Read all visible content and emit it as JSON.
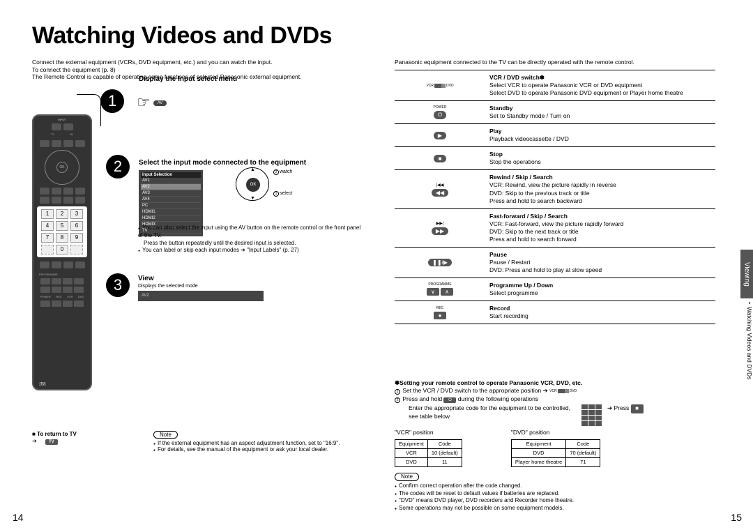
{
  "title": "Watching Videos and DVDs",
  "intro": {
    "l1": "Connect the external equipment (VCRs, DVD equipment, etc.) and you can watch the input.",
    "l2": "To connect the equipment (p. 8)",
    "l3": "The Remote Control is capable of operating some functions of selected Panasonic external equipment."
  },
  "steps": {
    "s1": {
      "title": "Display the Input select menu",
      "av": "AV"
    },
    "s2": {
      "title": "Select the input mode connected to the equipment",
      "inputSelHeader": "Input Selection",
      "inputs": [
        "AV1",
        "AV2",
        "AV3",
        "AV4",
        "PC",
        "HDMI1",
        "HDMI2",
        "HDMI3",
        "TV"
      ],
      "ok": "OK",
      "watch": "watch",
      "select": "select",
      "body1": "You can also select the input using the AV button on the remote control or the front panel of the TV.",
      "body2": "Press the button repeatedly until the desired input is selected.",
      "body3": "You can label or skip each input modes ➔ \"Input Labels\" (p. 27)"
    },
    "s3": {
      "title": "View",
      "sub": "Displays the selected mode",
      "mode": "AV2"
    }
  },
  "returnTv": {
    "label": "To return to TV",
    "tv": "TV"
  },
  "leftNote": {
    "label": "Note",
    "l1": "If the external equipment has an aspect adjustment function, set to \"16:9\".",
    "l2": "For details, see the manual of the equipment or ask your local dealer."
  },
  "rightIntro": "Panasonic equipment connected to the TV can be directly operated with the remote control.",
  "functions": [
    {
      "icon": "switch",
      "lbl1": "VCR",
      "lbl2": "DVD",
      "title": "VCR / DVD switch✽",
      "d1": "Select VCR to operate Panasonic VCR or DVD equipment",
      "d2": "Select DVD to operate Panasonic DVD equipment or Player home theatre"
    },
    {
      "icon": "power",
      "label": "POWER",
      "glyph": "⏻",
      "title": "Standby",
      "d1": "Set to Standby mode / Turn on"
    },
    {
      "icon": "play",
      "glyph": "▶",
      "title": "Play",
      "d1": "Playback videocassette / DVD"
    },
    {
      "icon": "stop",
      "glyph": "■",
      "title": "Stop",
      "d1": "Stop the operations"
    },
    {
      "icon": "rew",
      "glyph1": "|◀◀",
      "glyph2": "◀◀",
      "title": "Rewind / Skip / Search",
      "d1": "VCR: Rewind, view the picture rapidly in reverse",
      "d2": "DVD: Skip to the previous track or title",
      "d3": "        Press and hold to search backward"
    },
    {
      "icon": "ff",
      "glyph1": "▶▶|",
      "glyph2": "▶▶",
      "title": "Fast-forward / Skip / Search",
      "d1": "VCR: Fast-forward, view the picture rapidly forward",
      "d2": "DVD: Skip to the next track or title",
      "d3": "        Press and hold to search forward"
    },
    {
      "icon": "pause",
      "glyph": "❚❚/▶",
      "title": "Pause",
      "d1": "Pause / Restart",
      "d2": "DVD: Press and hold to play at slow speed"
    },
    {
      "icon": "prog",
      "label": "PROGRAMME",
      "glyph1": "∨",
      "glyph2": "∧",
      "title": "Programme Up / Down",
      "d1": "Select programme"
    },
    {
      "icon": "rec",
      "label": "REC",
      "glyph": "●",
      "title": "Record",
      "d1": "Start recording"
    }
  ],
  "ast": {
    "title": "✽Setting your remote control to operate Panasonic VCR, DVD, etc.",
    "l1": " Set the VCR / DVD switch to the appropriate position ➔",
    "l2a": " Press and hold ",
    "l2b": " during the following operations",
    "l3": "Enter the appropriate code for the equipment to be controlled, see table below",
    "press": "Press",
    "vcrPos": "\"VCR\" position",
    "dvdPos": "\"DVD\" position",
    "tbl": {
      "h1": "Equipment",
      "h2": "Code",
      "vcr": [
        [
          "VCR",
          "10 (default)"
        ],
        [
          "DVD",
          "11"
        ]
      ],
      "dvd": [
        [
          "DVD",
          "70 (default)"
        ],
        [
          "Player home theatre",
          "71"
        ]
      ]
    }
  },
  "note2": {
    "label": "Note",
    "l1": "Confirm correct operation after the code changed.",
    "l2": "The codes will be reset to default values if batteries are replaced.",
    "l3": "\"DVD\" means DVD player, DVD recorders and Recorder home theatre.",
    "l4": "Some operations may not be possible on some equipment models."
  },
  "pageL": "14",
  "pageR": "15",
  "sideTab": "Viewing",
  "sideSub": "Watching Videos and DVDs",
  "remote": {
    "ok": "OK",
    "input": "INPUT",
    "tv": "TV",
    "av": "AV"
  }
}
